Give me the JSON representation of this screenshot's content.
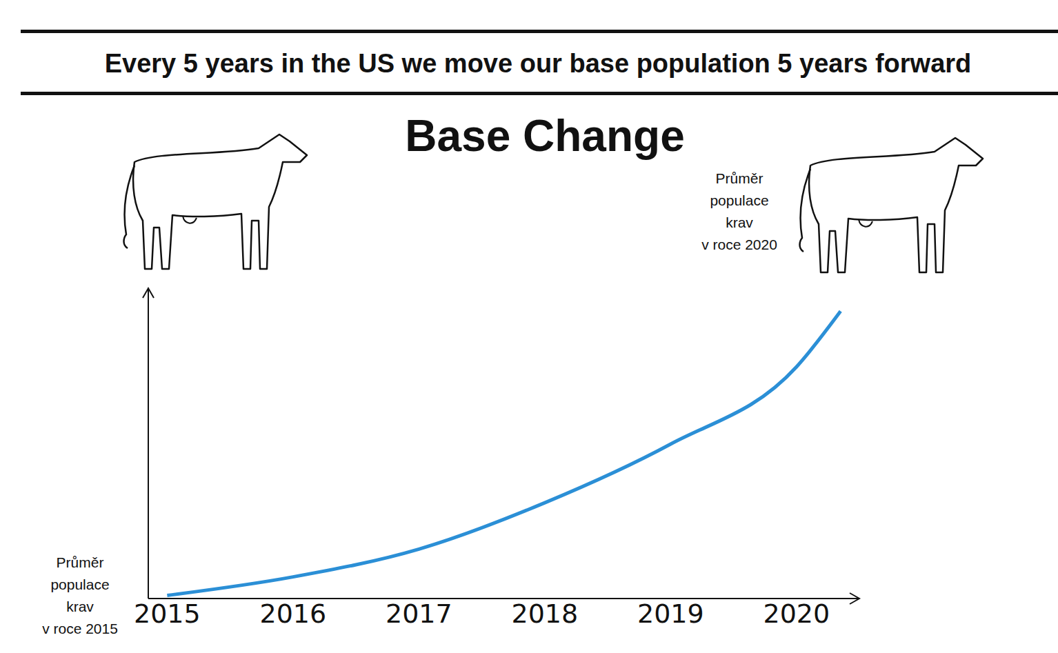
{
  "header": "Every 5 years in the US we move our base population 5 years forward",
  "chart_data": {
    "type": "line",
    "title": "Base Change",
    "x": [
      2015,
      2016,
      2017,
      2018,
      2019,
      2020,
      2020.35
    ],
    "values": [
      1,
      7,
      16,
      31,
      50,
      75,
      93
    ],
    "color": "#2b8fd6",
    "xlim": [
      2014.85,
      2020.45
    ],
    "xticks": [
      2015,
      2016,
      2017,
      2018,
      2019,
      2020
    ],
    "ylim": [
      0,
      100
    ],
    "tick_labels": "x",
    "grid": false,
    "annotations": [
      "Průměr\npopulace\nkrav\nv roce 2015",
      "Průměr\npopulace\nkrav\nv roce 2020"
    ]
  }
}
